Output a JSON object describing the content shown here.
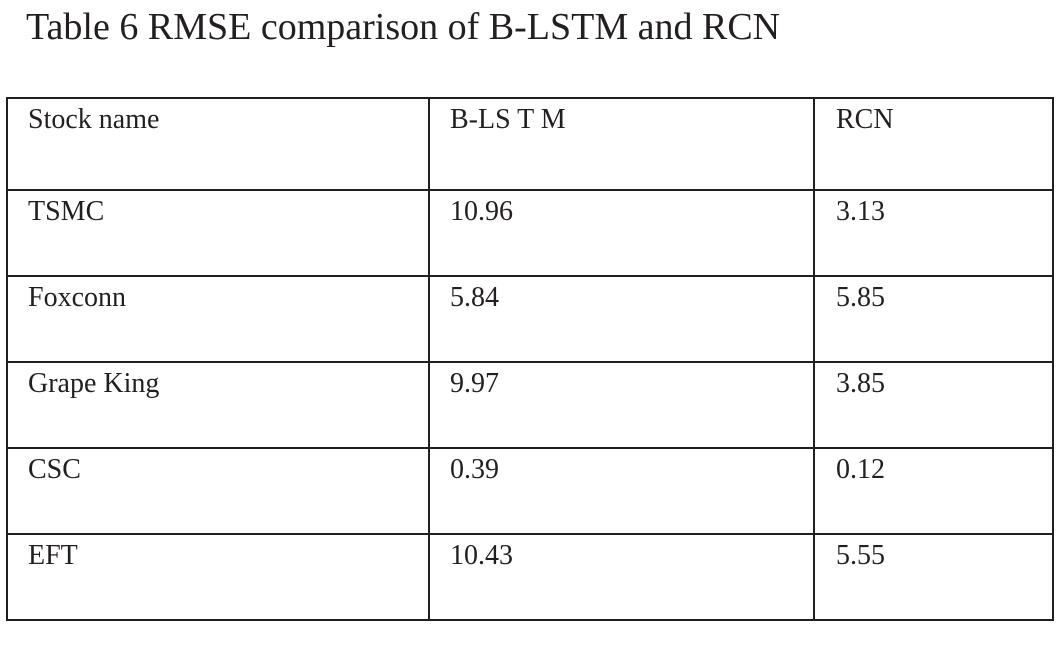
{
  "caption": "Table 6 RMSE comparison of B-LSTM and RCN",
  "table": {
    "headers": [
      "Stock name",
      "B-LS T M",
      "RCN"
    ],
    "rows": [
      [
        "TSMC",
        "10.96",
        "3.13"
      ],
      [
        "Foxconn",
        "5.84",
        "5.85"
      ],
      [
        "Grape King",
        "9.97",
        "3.85"
      ],
      [
        "CSC",
        "0.39",
        "0.12"
      ],
      [
        "EFT",
        "10.43",
        "5.55"
      ]
    ]
  }
}
